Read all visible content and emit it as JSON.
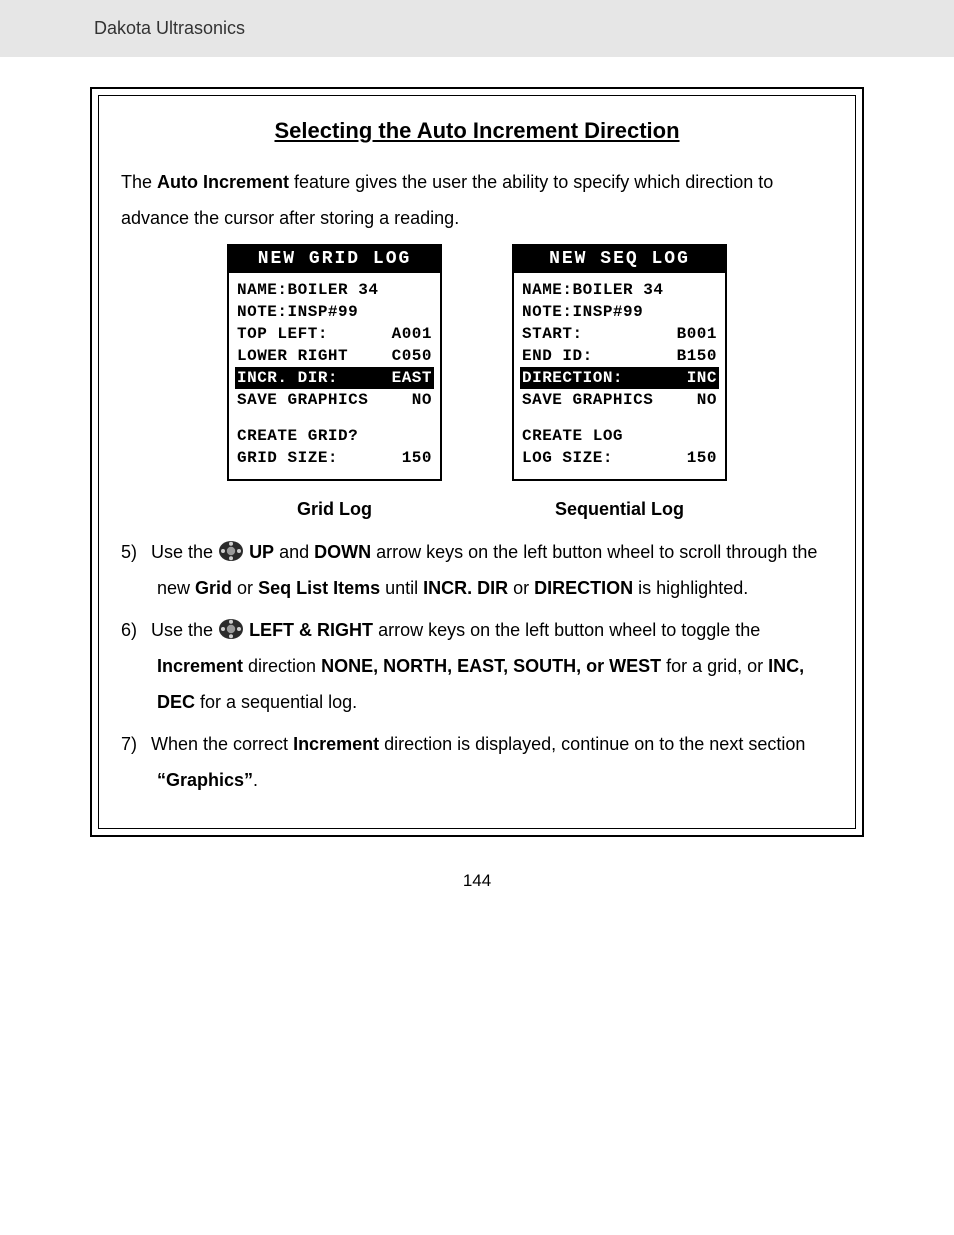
{
  "header": {
    "brand": "Dakota Ultrasonics"
  },
  "section": {
    "title": "Selecting the Auto Increment Direction",
    "intro_pre": "The ",
    "intro_b1": "Auto Increment",
    "intro_post1": " feature gives the user the ability to specify which direction to advance the cursor after storing a reading."
  },
  "grid_screen": {
    "title": "NEW GRID LOG",
    "rows": [
      {
        "l": "NAME:BOILER 34",
        "r": ""
      },
      {
        "l": "NOTE:INSP#99",
        "r": ""
      },
      {
        "l": "TOP LEFT:",
        "r": "A001"
      },
      {
        "l": "LOWER RIGHT",
        "r": "C050"
      },
      {
        "l": "INCR. DIR:",
        "r": "EAST",
        "hl": true
      },
      {
        "l": "SAVE GRAPHICS",
        "r": "NO"
      }
    ],
    "rows2": [
      {
        "l": "CREATE GRID?",
        "r": ""
      },
      {
        "l": "GRID SIZE:",
        "r": "150"
      }
    ],
    "caption": "Grid Log"
  },
  "seq_screen": {
    "title": "NEW SEQ LOG",
    "rows": [
      {
        "l": "NAME:BOILER 34",
        "r": ""
      },
      {
        "l": "NOTE:INSP#99",
        "r": ""
      },
      {
        "l": "START:",
        "r": "B001"
      },
      {
        "l": "END ID:",
        "r": "B150"
      },
      {
        "l": "DIRECTION:",
        "r": "INC",
        "hl": true
      },
      {
        "l": "SAVE GRAPHICS",
        "r": "NO"
      }
    ],
    "rows2": [
      {
        "l": "CREATE LOG",
        "r": ""
      },
      {
        "l": "LOG SIZE:",
        "r": "150"
      }
    ],
    "caption": "Sequential Log"
  },
  "steps": {
    "s5": {
      "num": "5)",
      "t1": "Use the ",
      "b1": "UP",
      "t2": " and ",
      "b2": "DOWN",
      "t3": " arrow keys on the left button wheel to scroll through the new ",
      "b3": "Grid",
      "t4": " or ",
      "b4": "Seq List Items",
      "t5": " until ",
      "b5": "INCR. DIR",
      "t6": " or ",
      "b6": "DIRECTION",
      "t7": " is highlighted."
    },
    "s6": {
      "num": "6)",
      "t1": "Use the ",
      "b1": "LEFT & RIGHT",
      "t2": " arrow keys on the left button wheel to toggle the ",
      "b2": "Increment",
      "t3": " direction ",
      "b3": "NONE, NORTH, EAST, SOUTH, or WEST",
      "t4": " for a grid, or ",
      "b4": "INC, DEC",
      "t5": " for a sequential log."
    },
    "s7": {
      "num": "7)",
      "t1": "When the correct ",
      "b1": "Increment",
      "t2": " direction is displayed, continue on to the next section ",
      "b2": "“Graphics”",
      "t3": "."
    }
  },
  "page_number": "144",
  "colors": {
    "header_bg": "#e6e6e6",
    "text": "#1a1a1a",
    "lcd_border": "#000000",
    "hl_bg": "#000000",
    "hl_fg": "#ffffff"
  }
}
